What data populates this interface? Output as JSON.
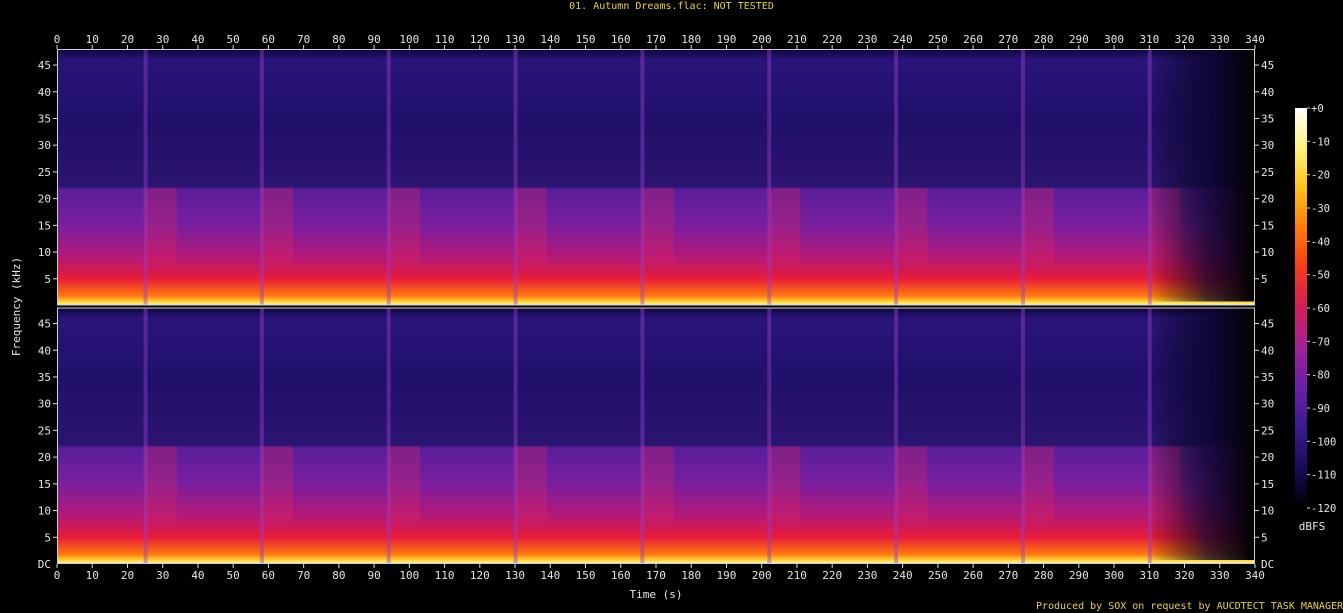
{
  "chart_data": {
    "type": "heatmap",
    "title": "01. Autumn Dreams.flac: NOT TESTED",
    "xlabel": "Time (s)",
    "ylabel": "Frequency (kHz)",
    "xlim": [
      0,
      340
    ],
    "ylim": [
      0,
      48
    ],
    "x_ticks": [
      0,
      10,
      20,
      30,
      40,
      50,
      60,
      70,
      80,
      90,
      100,
      110,
      120,
      130,
      140,
      150,
      160,
      170,
      180,
      190,
      200,
      210,
      220,
      230,
      240,
      250,
      260,
      270,
      280,
      290,
      300,
      310,
      320,
      330,
      340
    ],
    "y_ticks": [
      5,
      10,
      15,
      20,
      25,
      30,
      35,
      40,
      45
    ],
    "y_tick_dc_label": "DC",
    "channels": 2,
    "colorbar": {
      "label": "dBFS",
      "range": [
        -120,
        0
      ],
      "ticks": [
        "+0",
        "-10",
        "-20",
        "-30",
        "-40",
        "-50",
        "-60",
        "-70",
        "-80",
        "-90",
        "-100",
        "-110",
        "-120"
      ],
      "colors": [
        "#000000",
        "#1a0a5c",
        "#3a1b8f",
        "#6a1fa8",
        "#a0229a",
        "#d41d5a",
        "#f53a1a",
        "#ff7a0a",
        "#ffc21c",
        "#fff27a",
        "#ffffff"
      ]
    },
    "features": {
      "track_end_s": 340,
      "energy_bands_khz": {
        "strong": [
          0,
          5
        ],
        "medium": [
          5,
          22
        ],
        "weak": [
          22,
          46
        ]
      },
      "segment_starts_s": [
        25,
        58,
        94,
        130,
        166,
        202,
        238,
        274,
        310
      ]
    },
    "credit": "Produced by SOX on request by AUCDTECT TASK MANAGER"
  }
}
